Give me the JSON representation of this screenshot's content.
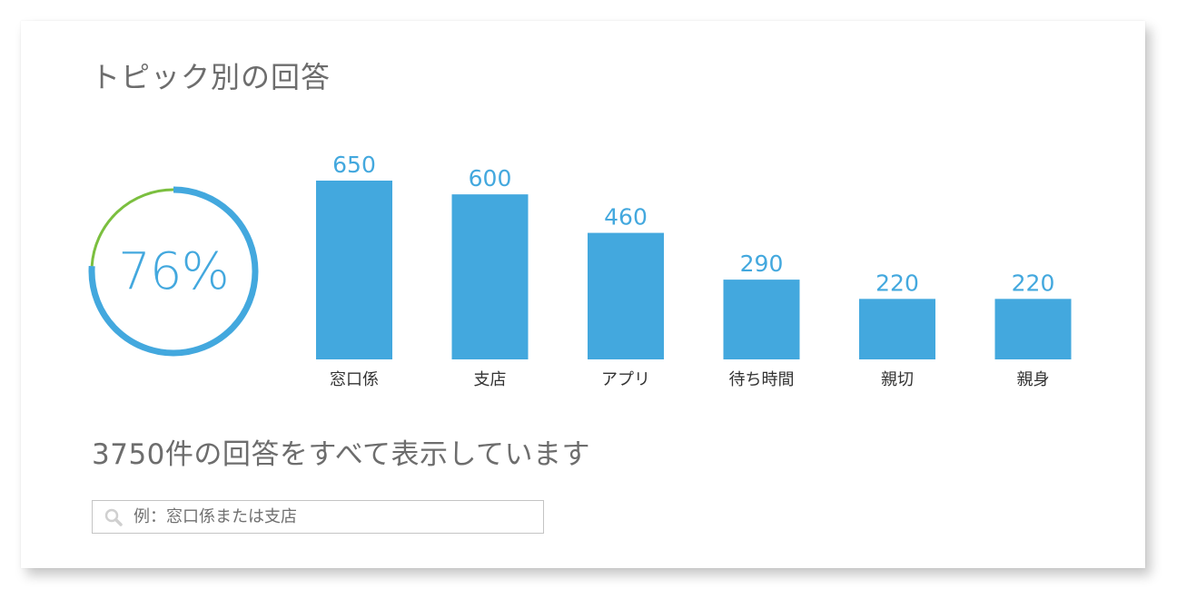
{
  "title": "トピック別の回答",
  "gauge": {
    "label": "76%",
    "value": 76,
    "color": "#43a8de",
    "remainder_color": "#7bbf3f"
  },
  "summary": "3750件の回答をすべて表示しています",
  "search": {
    "placeholder": "例：窓口係または支店",
    "icon": "search-icon"
  },
  "chart_data": {
    "type": "bar",
    "categories": [
      "窓口係",
      "支店",
      "アプリ",
      "待ち時間",
      "親切",
      "親身"
    ],
    "values": [
      650,
      600,
      460,
      290,
      220,
      220
    ],
    "value_labels": [
      "650",
      "600",
      "460",
      "290",
      "220",
      "220"
    ],
    "title": "",
    "xlabel": "",
    "ylabel": "",
    "ylim": [
      0,
      650
    ],
    "grid": false,
    "bar_color": "#43a8de",
    "label_color": "#43a8de"
  }
}
